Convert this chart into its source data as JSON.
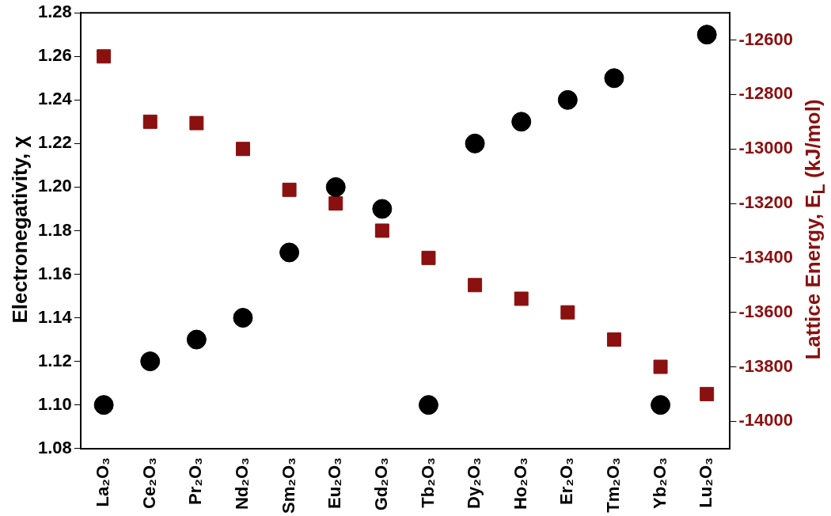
{
  "chart_data": {
    "type": "scatter",
    "ylabel": "Electronegativity, χ",
    "y2label": "Lattice Energy, E$_{L}$ (kJ/mol)",
    "categories": [
      "La₂O₃",
      "Ce₂O₃",
      "Pr₂O₃",
      "Nd₂O₃",
      "Sm₂O₃",
      "Eu₂O₃",
      "Gd₂O₃",
      "Tb₂O₃",
      "Dy₂O₃",
      "Ho₂O₃",
      "Er₂O₃",
      "Tm₂O₃",
      "Yb₂O₃",
      "Lu₂O₃"
    ],
    "series": [
      {
        "color": "#000000",
        "marker": "circle",
        "values": [
          1.1,
          1.12,
          1.13,
          1.14,
          1.17,
          1.2,
          1.19,
          1.1,
          1.22,
          1.23,
          1.24,
          1.25,
          1.1,
          1.27
        ]
      },
      {
        "color": "#8b1010",
        "marker": "square",
        "axis": "y2",
        "values": [
          -12660,
          -12900,
          -12905,
          -13000,
          -13150,
          -13200,
          -13300,
          -13400,
          -13500,
          -13550,
          -13600,
          -13700,
          -13800,
          -13900
        ]
      }
    ],
    "ylim": [
      1.08,
      1.28
    ],
    "yticks": [
      {
        "value": 1.08,
        "label": "1.08"
      },
      {
        "value": 1.1,
        "label": "1.10"
      },
      {
        "value": 1.12,
        "label": "1.12"
      },
      {
        "value": 1.14,
        "label": "1.14"
      },
      {
        "value": 1.16,
        "label": "1.16"
      },
      {
        "value": 1.18,
        "label": "1.18"
      },
      {
        "value": 1.2,
        "label": "1.20"
      },
      {
        "value": 1.22,
        "label": "1.22"
      },
      {
        "value": 1.24,
        "label": "1.24"
      },
      {
        "value": 1.26,
        "label": "1.26"
      },
      {
        "value": 1.28,
        "label": "1.28"
      }
    ],
    "y2lim": [
      -14100,
      -12500
    ],
    "y2ticks": [
      -14000,
      -13800,
      -13600,
      -13400,
      -13200,
      -13000,
      -12800,
      -12600
    ],
    "grid": false,
    "legend": false
  }
}
